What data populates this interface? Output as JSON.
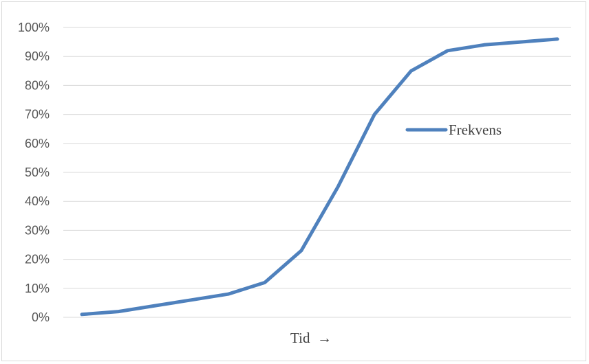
{
  "chart_data": {
    "type": "line",
    "title": "",
    "xlabel": "Tid  →",
    "ylabel": "",
    "ylim": [
      0,
      1
    ],
    "y_ticks": [
      0,
      0.1,
      0.2,
      0.3,
      0.4,
      0.5,
      0.6,
      0.7,
      0.8,
      0.9,
      1.0
    ],
    "y_tick_labels": [
      "0%",
      "10%",
      "20%",
      "30%",
      "40%",
      "50%",
      "60%",
      "70%",
      "80%",
      "90%",
      "100%"
    ],
    "grid": true,
    "legend_position": "right",
    "colors": {
      "series": "#4f81bd",
      "grid": "#d9d9d9",
      "tick_text": "#595959"
    },
    "series": [
      {
        "name": "Frekvens",
        "values": [
          0.01,
          0.02,
          0.04,
          0.06,
          0.08,
          0.12,
          0.23,
          0.45,
          0.7,
          0.85,
          0.92,
          0.94,
          0.95,
          0.96
        ]
      }
    ]
  }
}
